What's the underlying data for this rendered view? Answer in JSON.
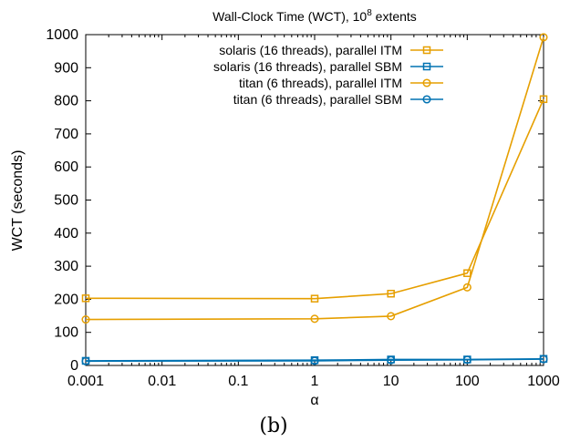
{
  "chart_data": {
    "type": "line",
    "title": "Wall-Clock Time (WCT), 10",
    "title_exp": "8",
    "title_suffix": " extents",
    "xlabel": "α",
    "ylabel": "WCT (seconds)",
    "caption": "(b)",
    "x_scale": "log",
    "xlim": [
      0.001,
      1000
    ],
    "ylim": [
      0,
      1000
    ],
    "x_ticks": [
      0.001,
      0.01,
      0.1,
      1,
      10,
      100,
      1000
    ],
    "x_tick_labels": [
      "0.001",
      "0.01",
      "0.1",
      "1",
      "10",
      "100",
      "1000"
    ],
    "y_ticks": [
      0,
      100,
      200,
      300,
      400,
      500,
      600,
      700,
      800,
      900,
      1000
    ],
    "y_tick_labels": [
      "0",
      "100",
      "200",
      "300",
      "400",
      "500",
      "600",
      "700",
      "800",
      "900",
      "1000"
    ],
    "grid": false,
    "legend_position": "top-right",
    "series": [
      {
        "name": "solaris (16 threads), parallel ITM",
        "color": "#e69f00",
        "marker": "square",
        "x": [
          0.001,
          1,
          10,
          100,
          1000
        ],
        "y": [
          203,
          202,
          217,
          279,
          805
        ]
      },
      {
        "name": "solaris (16 threads), parallel SBM",
        "color": "#0072b2",
        "marker": "square",
        "x": [
          0.001,
          1,
          10,
          100,
          1000
        ],
        "y": [
          14,
          16,
          18,
          18,
          20
        ]
      },
      {
        "name": "titan (6 threads), parallel ITM",
        "color": "#e69f00",
        "marker": "circle",
        "x": [
          0.001,
          1,
          10,
          100,
          1000
        ],
        "y": [
          139,
          141,
          149,
          236,
          992
        ]
      },
      {
        "name": "titan (6 threads), parallel SBM",
        "color": "#0072b2",
        "marker": "circle",
        "x": [
          0.001,
          1,
          10,
          100,
          1000
        ],
        "y": [
          13,
          14,
          16,
          17,
          19
        ]
      }
    ]
  }
}
